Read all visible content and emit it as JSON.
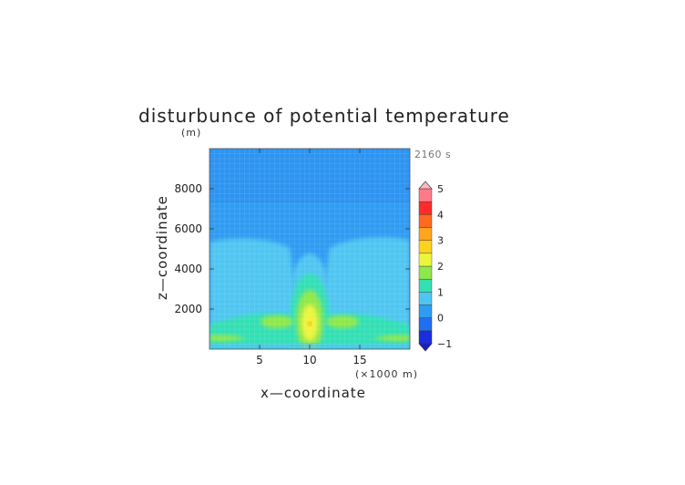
{
  "chart_data": {
    "type": "heatmap",
    "title": "disturbunce of potential temperature",
    "units_label": "(m)",
    "time_label": "2160 s",
    "xlabel": "x—coordinate",
    "ylabel": "z—coordinate",
    "x_units_label": "(×1000 m)",
    "xlim": [
      0,
      20
    ],
    "ylim": [
      0,
      10000
    ],
    "xticks": [
      5,
      10,
      15
    ],
    "xtick_labels": [
      "5",
      "10",
      "15"
    ],
    "yticks": [
      2000,
      4000,
      6000,
      8000
    ],
    "ytick_labels": [
      "2000",
      "4000",
      "6000",
      "8000"
    ],
    "colorbar": {
      "levels": [
        -1,
        -0.5,
        0,
        0.5,
        1,
        1.5,
        2,
        2.5,
        3,
        3.5,
        4,
        4.5,
        5
      ],
      "colors": [
        "#1a2ee0",
        "#1f6ff0",
        "#2f9cf2",
        "#4fc6f2",
        "#33e0b4",
        "#8fe84a",
        "#ecf53a",
        "#ffd21e",
        "#ffa51e",
        "#ff6a1e",
        "#ff2a2a",
        "#ff7a86"
      ],
      "under_color": "#1a1fc0",
      "over_color": "#ffb8c0",
      "tick_labels": [
        "−1",
        "0",
        "1",
        "2",
        "3",
        "4",
        "5"
      ],
      "tick_values": [
        -1,
        0,
        1,
        2,
        3,
        4,
        5
      ]
    },
    "features": [
      {
        "name": "thermal-core",
        "x": 10,
        "z": 1300,
        "max_value": 2.3
      },
      {
        "name": "left-lobe",
        "x": 7.5,
        "z": 1300,
        "max_value": 1.4
      },
      {
        "name": "right-lobe",
        "x": 12.5,
        "z": 1300,
        "max_value": 1.4
      },
      {
        "name": "low-level-band",
        "x_range": [
          0,
          20
        ],
        "z": 600,
        "max_value": 1.2
      }
    ],
    "background_value": -0.2
  }
}
